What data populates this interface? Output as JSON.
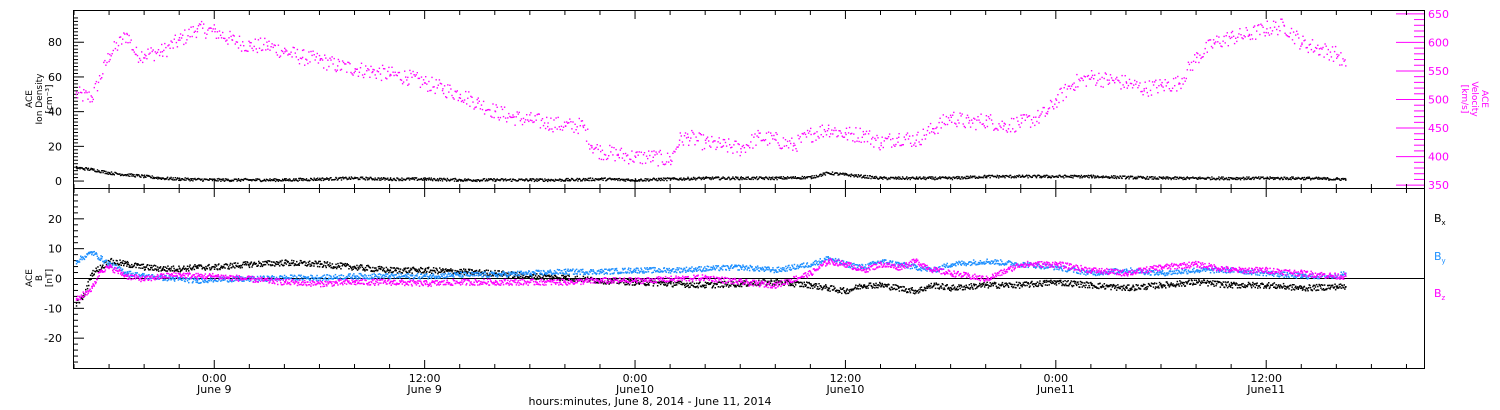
{
  "chart_data": [
    {
      "type": "scatter",
      "panel": "top",
      "ylabel_left": [
        "ACE",
        "Ion Density",
        "[cm⁻³]"
      ],
      "ylabel_right": [
        "ACE",
        "Velocity",
        "[km/s]"
      ],
      "ylim_left": [
        -4,
        98
      ],
      "ylim_right": [
        345,
        655
      ],
      "yticks_left": [
        0,
        20,
        40,
        60,
        80
      ],
      "yticks_right": [
        350,
        400,
        450,
        500,
        550,
        600,
        650
      ],
      "xlim_hours": [
        -8,
        69
      ],
      "series": [
        {
          "name": "Velocity",
          "axis": "right",
          "color": "#ff00ff",
          "x": [
            -7.9,
            -7,
            -6,
            -5,
            -4.5,
            -4,
            -3,
            -2,
            -1,
            0,
            1,
            2,
            3,
            4,
            5,
            6,
            7,
            8,
            9,
            10,
            11,
            12,
            13,
            14,
            15,
            16,
            17,
            18,
            19,
            20,
            21,
            21.5,
            22,
            23,
            24,
            25,
            26,
            26.5,
            27,
            28,
            29,
            30,
            31,
            32,
            33,
            34,
            35,
            36,
            37,
            38,
            39,
            40,
            41,
            42,
            43,
            44,
            45,
            46,
            47,
            47.5,
            48,
            49,
            50,
            51,
            52,
            53,
            54,
            55,
            56,
            57,
            58,
            59,
            60,
            61,
            62,
            63,
            64,
            64.5
          ],
          "y": [
            510,
            505,
            580,
            615,
            580,
            580,
            585,
            605,
            625,
            620,
            605,
            595,
            595,
            585,
            575,
            570,
            560,
            555,
            550,
            545,
            540,
            530,
            520,
            510,
            495,
            480,
            470,
            465,
            460,
            455,
            455,
            420,
            410,
            405,
            400,
            400,
            395,
            430,
            435,
            425,
            420,
            415,
            435,
            430,
            420,
            440,
            450,
            440,
            440,
            425,
            435,
            430,
            450,
            470,
            460,
            465,
            455,
            460,
            470,
            480,
            500,
            530,
            540,
            535,
            530,
            520,
            525,
            530,
            575,
            600,
            610,
            615,
            625,
            630,
            600,
            590,
            580,
            560
          ]
        },
        {
          "name": "Ion Density",
          "axis": "left",
          "color": "#000000",
          "x": [
            -7.9,
            -7,
            -6,
            -5,
            -4,
            -3,
            -2,
            0,
            2,
            4,
            6,
            8,
            10,
            12,
            14,
            16,
            18,
            20,
            22,
            24,
            26,
            28,
            30,
            32,
            34,
            35,
            36,
            37,
            38,
            40,
            42,
            44,
            46,
            48,
            50,
            52,
            54,
            56,
            58,
            60,
            62,
            64,
            64.5
          ],
          "y": [
            8,
            7,
            5,
            4,
            3,
            2,
            1.5,
            1,
            1,
            1,
            1.5,
            2,
            1.5,
            1.5,
            1,
            1,
            1,
            1,
            1.5,
            1,
            1.5,
            2,
            2,
            2,
            2.5,
            5,
            4,
            3,
            2,
            2,
            2,
            3,
            3,
            3,
            3,
            2.5,
            2,
            2,
            2,
            2,
            2,
            1.5,
            1.5
          ]
        }
      ]
    },
    {
      "type": "scatter",
      "panel": "bottom",
      "ylabel_left": [
        "ACE",
        "B",
        "[nT]"
      ],
      "ylim": [
        -30,
        30
      ],
      "yticks": [
        -20,
        -10,
        0,
        10,
        20
      ],
      "xlim_hours": [
        -8,
        69
      ],
      "legend": "right",
      "xticks": [
        {
          "hours": 0,
          "time": "0:00",
          "date": "June 9"
        },
        {
          "hours": 12,
          "time": "12:00",
          "date": "June 9"
        },
        {
          "hours": 24,
          "time": "0:00",
          "date": "June10"
        },
        {
          "hours": 36,
          "time": "12:00",
          "date": "June10"
        },
        {
          "hours": 48,
          "time": "0:00",
          "date": "June11"
        },
        {
          "hours": 60,
          "time": "12:00",
          "date": "June11"
        }
      ],
      "xlabel": "hours:minutes, June  8, 2014 - June 11, 2014",
      "series": [
        {
          "name": "B",
          "subscript": "x",
          "color": "#000000",
          "x": [
            -7.9,
            -7.5,
            -7,
            -6,
            -5,
            -4,
            -3,
            -2,
            -1,
            0,
            2,
            4,
            6,
            8,
            10,
            12,
            14,
            16,
            18,
            20,
            22,
            24,
            26,
            28,
            30,
            32,
            34,
            35,
            36,
            37,
            38,
            39,
            40,
            41,
            42,
            44,
            46,
            48,
            50,
            52,
            54,
            56,
            58,
            60,
            62,
            64,
            64.5
          ],
          "y": [
            -8,
            -6,
            2,
            6,
            5,
            4,
            3.5,
            3.5,
            4,
            4,
            5,
            5.5,
            5,
            4,
            3,
            3,
            2.5,
            2,
            1,
            0.5,
            -0.5,
            -1,
            -1.5,
            -2,
            -1.5,
            -1,
            -2,
            -3,
            -4,
            -2,
            -2,
            -3,
            -4,
            -2,
            -3,
            -2,
            -2,
            -1,
            -2,
            -3,
            -2,
            -1,
            -2,
            -2,
            -3,
            -2.5,
            -2.5
          ]
        },
        {
          "name": "B",
          "subscript": "y",
          "color": "#1e90ff",
          "x": [
            -7.9,
            -7,
            -6.5,
            -6,
            -5,
            -4,
            -3,
            -2,
            -1,
            0,
            2,
            4,
            6,
            8,
            10,
            12,
            14,
            16,
            18,
            20,
            22,
            24,
            26,
            28,
            30,
            32,
            34,
            35,
            36,
            37,
            38,
            39,
            40,
            41,
            42,
            44,
            46,
            48,
            50,
            52,
            54,
            56,
            58,
            60,
            62,
            64,
            64.5
          ],
          "y": [
            6,
            9,
            7,
            5,
            2,
            1,
            0.5,
            0,
            -0.5,
            0,
            0,
            0.5,
            0.5,
            1,
            1,
            1,
            1.5,
            1.5,
            2,
            2.5,
            2.5,
            3,
            3,
            3.5,
            4,
            3,
            5,
            7,
            5,
            4,
            6,
            5,
            4,
            3,
            5,
            6,
            5,
            4,
            2,
            3,
            2,
            3,
            3,
            2,
            1,
            1,
            2
          ]
        },
        {
          "name": "B",
          "subscript": "z",
          "color": "#ff00ff",
          "x": [
            -7.9,
            -7,
            -6.5,
            -6,
            -5,
            -4,
            -3,
            -2,
            -1,
            0,
            2,
            4,
            6,
            8,
            10,
            12,
            14,
            16,
            18,
            20,
            22,
            24,
            26,
            28,
            30,
            32,
            34,
            35,
            36,
            37,
            38,
            39,
            40,
            41,
            42,
            44,
            46,
            48,
            50,
            52,
            54,
            56,
            58,
            60,
            62,
            64,
            64.5
          ],
          "y": [
            -7,
            -3,
            3,
            4,
            1,
            0,
            1,
            1.5,
            1,
            1,
            0,
            -1,
            -1.5,
            -1,
            -1,
            -1.5,
            -1,
            -1,
            -1,
            -1,
            -0.5,
            -0.5,
            0,
            0.5,
            -1,
            -2,
            2,
            6,
            5,
            3,
            5,
            4,
            6,
            3,
            2,
            0,
            5,
            5,
            3,
            2,
            4,
            5,
            3,
            3,
            2,
            1,
            1
          ]
        }
      ]
    }
  ]
}
